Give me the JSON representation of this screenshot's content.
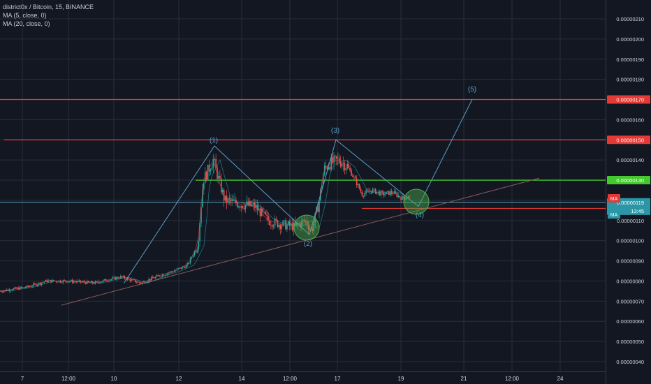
{
  "header": {
    "symbol_line": "district0x / Bitcoin, 15, BINANCE",
    "ma5": "MA (5, close, 0)",
    "ma20": "MA (20, close, 0)"
  },
  "colors": {
    "background": "#131722",
    "grid": "#2a2e39",
    "up": "#26a69a",
    "down": "#ef5350",
    "resistance": "#e53935",
    "support": "#43c92e",
    "wave": "#5aa0c8",
    "trendline": "#8a5a5a",
    "ma_badge": "#2a96a6"
  },
  "chart_data": {
    "type": "candlestick",
    "title": "district0x / Bitcoin, 15, BINANCE",
    "ylim": [
      3.5e-07,
      2.13e-06
    ],
    "y_ticks": [
      "0.00000040",
      "0.00000050",
      "0.00000060",
      "0.00000070",
      "0.00000080",
      "0.00000090",
      "0.00000100",
      "0.00000110",
      "0.00000120",
      "0.00000130",
      "0.00000140",
      "0.00000150",
      "0.00000160",
      "0.00000170",
      "0.00000180",
      "0.00000190",
      "0.00000200",
      "0.00000210"
    ],
    "x_ticks": [
      "7",
      "12:00",
      "10",
      "12",
      "14",
      "12:00",
      "17",
      "19",
      "21",
      "12:00",
      "24"
    ],
    "price_path": [
      {
        "t": 0,
        "p": 7.5e-07
      },
      {
        "t": 4,
        "p": 7.7e-07
      },
      {
        "t": 7,
        "p": 8e-07
      },
      {
        "t": 10,
        "p": 8e-07
      },
      {
        "t": 14,
        "p": 7.9e-07
      },
      {
        "t": 18,
        "p": 8.2e-07
      },
      {
        "t": 21,
        "p": 7.9e-07
      },
      {
        "t": 24,
        "p": 8.3e-07
      },
      {
        "t": 26,
        "p": 8.5e-07
      },
      {
        "t": 28,
        "p": 8.8e-07
      },
      {
        "t": 29.5,
        "p": 9.8e-07
      },
      {
        "t": 30.3,
        "p": 1.3e-06
      },
      {
        "t": 31.8,
        "p": 1.4e-06
      },
      {
        "t": 33.5,
        "p": 1.2e-06
      },
      {
        "t": 36,
        "p": 1.18e-06
      },
      {
        "t": 38,
        "p": 1.17e-06
      },
      {
        "t": 40,
        "p": 1.1e-06
      },
      {
        "t": 42,
        "p": 1.08e-06
      },
      {
        "t": 44,
        "p": 1.07e-06
      },
      {
        "t": 45.5,
        "p": 1.1e-06
      },
      {
        "t": 46.5,
        "p": 1.05e-06
      },
      {
        "t": 47.5,
        "p": 1.18e-06
      },
      {
        "t": 48.3,
        "p": 1.35e-06
      },
      {
        "t": 49,
        "p": 1.38e-06
      },
      {
        "t": 50.5,
        "p": 1.4e-06
      },
      {
        "t": 51.8,
        "p": 1.37e-06
      },
      {
        "t": 53,
        "p": 1.3e-06
      },
      {
        "t": 54,
        "p": 1.23e-06
      },
      {
        "t": 55.5,
        "p": 1.25e-06
      },
      {
        "t": 57,
        "p": 1.23e-06
      },
      {
        "t": 58.5,
        "p": 1.24e-06
      },
      {
        "t": 60,
        "p": 1.21e-06
      },
      {
        "t": 61.2,
        "p": 1.22e-06
      }
    ],
    "price_lines": [
      {
        "value": 1.7e-06,
        "label": "0.00000170",
        "color": "#e53935",
        "style": "solid"
      },
      {
        "value": 1.5e-06,
        "label": "0.00000150",
        "color": "#e53935",
        "style": "solid"
      },
      {
        "value": 1.3e-06,
        "label": "0.00000130",
        "color": "#43c92e",
        "style": "solid"
      },
      {
        "value": 1.16e-06,
        "label": "0.00000116",
        "color": "#e53935",
        "style": "solid"
      }
    ],
    "current_price": {
      "value": 1.19e-06,
      "label": "0.00000119",
      "sub": "13:45"
    },
    "ma_badges": [
      {
        "label": "MA",
        "value": 1.21e-06,
        "color": "#e53935"
      },
      {
        "label": "MA",
        "value": 1.13e-06,
        "color": "#2a96a6"
      }
    ],
    "waves": [
      {
        "label": "(1)",
        "t": 31.7,
        "p": 1.47e-06
      },
      {
        "label": "(2)",
        "t": 46.5,
        "p": 1e-06
      },
      {
        "label": "(3)",
        "t": 50.4,
        "p": 1.51e-06
      },
      {
        "label": "(4)",
        "t": 60.8,
        "p": 1.16e-06
      },
      {
        "label": "(5)",
        "t": 70.3,
        "p": 1.7e-06
      }
    ],
    "circles": [
      {
        "t": 45.7,
        "p": 1.1e-06
      },
      {
        "t": 61.6,
        "p": 1.19e-06
      }
    ]
  }
}
